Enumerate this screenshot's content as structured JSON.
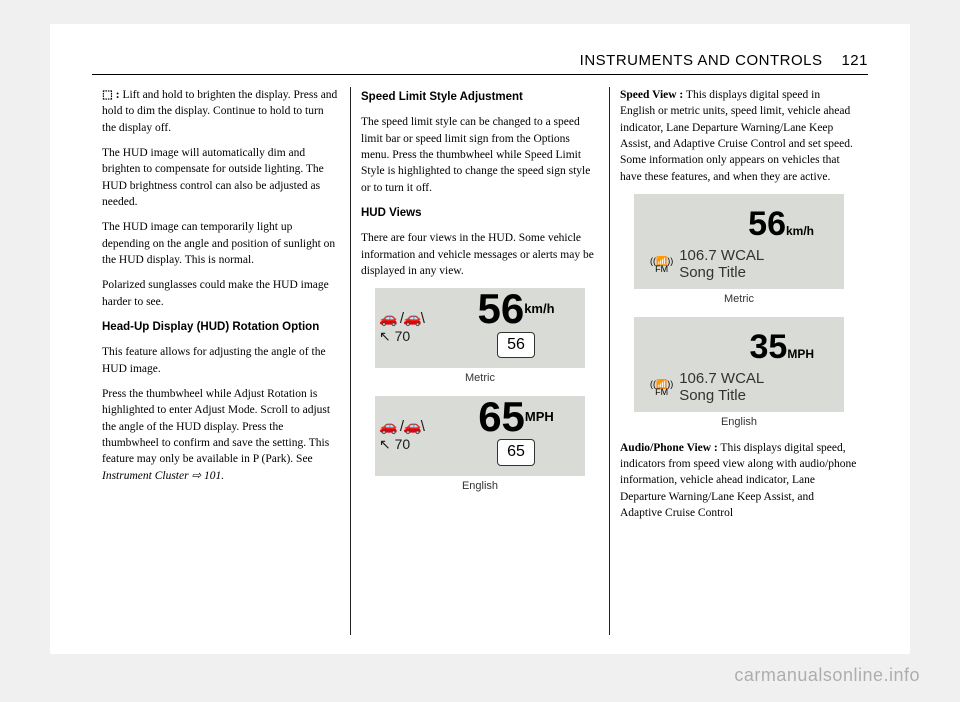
{
  "header": {
    "title": "INSTRUMENTS AND CONTROLS",
    "page": "121"
  },
  "col1": {
    "p1_lead": "⬚ :",
    "p1": " Lift and hold to brighten the display. Press and hold to dim the display. Continue to hold to turn the display off.",
    "p2": "The HUD image will automatically dim and brighten to compensate for outside lighting. The HUD brightness control can also be adjusted as needed.",
    "p3": "The HUD image can temporarily light up depending on the angle and position of sunlight on the HUD display. This is normal.",
    "p4": "Polarized sunglasses could make the HUD image harder to see.",
    "h1": "Head-Up Display (HUD) Rotation Option",
    "p5": "This feature allows for adjusting the angle of the HUD image.",
    "p6a": "Press the thumbwheel while Adjust Rotation is highlighted to enter Adjust Mode. Scroll to adjust the angle of the HUD display. Press the thumbwheel to confirm and save the setting. This feature may only be available in P (Park). See ",
    "p6ref": "Instrument Cluster ⇨ 101."
  },
  "col2": {
    "h1": "Speed Limit Style Adjustment",
    "p1": "The speed limit style can be changed to a speed limit bar or speed limit sign from the Options menu. Press the thumbwheel while Speed Limit Style is highlighted to change the speed sign style or to turn it off.",
    "h2": "HUD Views",
    "p2": "There are four views in the HUD. Some vehicle information and vehicle messages or alerts may be displayed in any view.",
    "hud1": {
      "icons_row1": "🚗 /🚗\\",
      "icons_row2": "↖ 70",
      "speed": "56",
      "unit": "km/h",
      "sign": "56",
      "caption": "Metric"
    },
    "hud2": {
      "icons_row1": "🚗 /🚗\\",
      "icons_row2": "↖ 70",
      "speed": "65",
      "unit": "MPH",
      "sign": "65",
      "caption": "English"
    }
  },
  "col3": {
    "p1_lead": "Speed View :",
    "p1": " This displays digital speed in English or metric units, speed limit, vehicle ahead indicator, Lane Departure Warning/Lane Keep Assist, and Adaptive Cruise Control and set speed. Some information only appears on vehicles that have these features, and when they are active.",
    "hud1": {
      "speed": "56",
      "unit": "km/h",
      "fm": "FM",
      "station": "106.7 WCAL",
      "song": "Song Title",
      "caption": "Metric"
    },
    "hud2": {
      "speed": "35",
      "unit": "MPH",
      "fm": "FM",
      "station": "106.7 WCAL",
      "song": "Song Title",
      "caption": "English"
    },
    "p2_lead": "Audio/Phone View :",
    "p2": " This displays digital speed, indicators from speed view along with audio/phone information, vehicle ahead indicator, Lane Departure Warning/Lane Keep Assist, and Adaptive Cruise Control"
  },
  "watermark": "carmanualsonline.info"
}
